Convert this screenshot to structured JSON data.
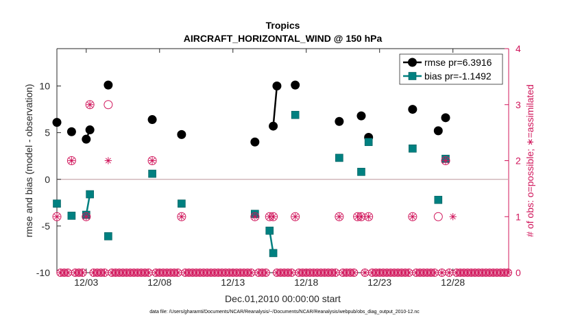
{
  "chart_data": {
    "type": "scatter",
    "title": "Tropics",
    "subtitle": "AIRCRAFT_HORIZONTAL_WIND @ 150 hPa",
    "xlabel": "Dec.01,2010 00:00:00 start",
    "ylabel": "rmse and bias (model - observation)",
    "y2label": "# of obs: o=possible; ∗=assimilated",
    "xlim": [
      1,
      31.8
    ],
    "ylim": [
      -10,
      14
    ],
    "y2lim": [
      0,
      4
    ],
    "x_ticks": [
      3,
      8,
      13,
      18,
      23,
      28
    ],
    "x_tick_labels": [
      "12/03",
      "12/08",
      "12/13",
      "12/18",
      "12/23",
      "12/28"
    ],
    "y_ticks": [
      -10,
      -5,
      0,
      5,
      10
    ],
    "y_tick_labels": [
      "-10",
      "-5",
      "0",
      "5",
      "10"
    ],
    "y2_ticks": [
      0,
      1,
      2,
      3,
      4
    ],
    "y2_tick_labels": [
      "0",
      "1",
      "2",
      "3",
      "4"
    ],
    "legend_position": "top-right",
    "zero_line": true,
    "series": [
      {
        "name": "rmse pr=6.3916",
        "color": "#000000",
        "marker": "circle",
        "x": [
          1.0,
          2.0,
          3.0,
          3.25,
          4.5,
          7.5,
          9.5,
          14.5,
          15.75,
          16.0,
          17.25,
          20.25,
          21.75,
          22.25,
          25.25,
          27.0,
          27.5
        ],
        "y": [
          6.1,
          5.1,
          4.3,
          5.3,
          10.1,
          6.4,
          4.8,
          4.0,
          5.7,
          10.0,
          10.1,
          6.2,
          6.8,
          4.5,
          7.5,
          5.2,
          6.6
        ],
        "segments": [
          [
            2,
            3
          ],
          [
            8,
            9
          ]
        ]
      },
      {
        "name": "bias pr=-1.1492",
        "color": "#008080",
        "marker": "square",
        "x": [
          1.0,
          2.0,
          3.0,
          3.25,
          4.5,
          7.5,
          9.5,
          14.5,
          15.5,
          15.75,
          17.25,
          20.25,
          21.75,
          22.25,
          25.25,
          27.0,
          27.5
        ],
        "y": [
          -2.6,
          -3.9,
          -3.8,
          -1.6,
          -6.1,
          0.6,
          -2.6,
          -3.7,
          -5.5,
          -7.9,
          6.9,
          2.3,
          0.8,
          4.0,
          3.3,
          -2.2,
          2.2
        ],
        "segments": [
          [
            2,
            3
          ],
          [
            8,
            9
          ]
        ]
      },
      {
        "name": "possible",
        "axis": "y2",
        "color": "#d0145a",
        "marker": "open-circle",
        "x": [
          1.0,
          2.0,
          3.0,
          3.25,
          4.5,
          7.5,
          9.5,
          14.5,
          15.5,
          15.75,
          17.25,
          20.25,
          21.5,
          21.75,
          22.25,
          25.25,
          27.0,
          27.5
        ],
        "y": [
          1,
          2,
          1,
          3,
          3,
          2,
          1,
          1,
          1,
          1,
          1,
          1,
          1,
          1,
          1,
          1,
          1,
          2
        ]
      },
      {
        "name": "assimilated",
        "axis": "y2",
        "color": "#d0145a",
        "marker": "asterisk",
        "x": [
          1.0,
          2.0,
          3.0,
          3.25,
          4.5,
          7.5,
          9.5,
          14.5,
          15.5,
          15.75,
          17.25,
          20.25,
          21.5,
          21.75,
          22.25,
          25.25,
          27.5,
          28.0
        ],
        "y": [
          1,
          2,
          1,
          3,
          2,
          2,
          1,
          1,
          1,
          1,
          1,
          1,
          1,
          1,
          1,
          1,
          2,
          1
        ]
      },
      {
        "name": "zero-count",
        "axis": "y2",
        "color": "#d0145a",
        "marker": "open-circle-asterisk",
        "x_start": 1.25,
        "x_step": 0.25,
        "x_end": 31.75,
        "y_value": 0,
        "exclude_x": [
          2.0,
          3.0,
          3.25,
          4.5,
          7.5,
          9.5,
          14.5,
          15.5,
          15.75,
          17.25,
          20.25,
          21.5,
          21.75,
          22.25,
          25.25,
          27.0,
          27.5,
          28.0
        ]
      }
    ]
  },
  "footer": {
    "data_file": "data file: /Users/gharamti/Documents/NCAR/Reanalysis/~/Documents/NCAR/Reanalysis/webpub/obs_diag_output_2010-12.nc"
  }
}
